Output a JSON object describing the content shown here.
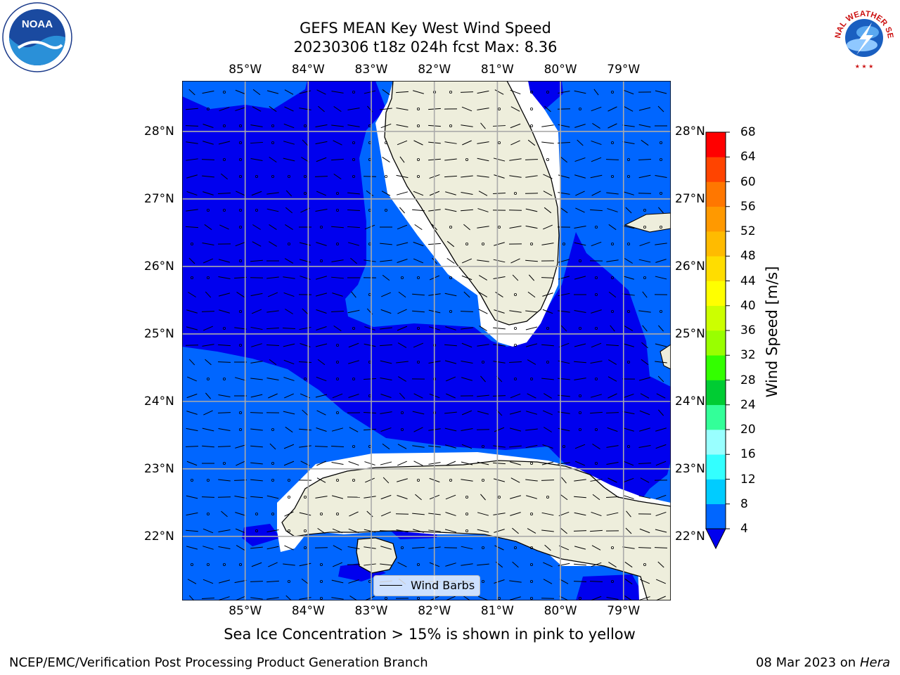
{
  "title": {
    "line1": "GEFS MEAN Key West Wind Speed",
    "line2": "20230306 t18z 024h fcst   Max: 8.36"
  },
  "map": {
    "lon_ticks": [
      "85°W",
      "84°W",
      "83°W",
      "82°W",
      "81°W",
      "80°W",
      "79°W"
    ],
    "lat_ticks": [
      "28°N",
      "27°N",
      "26°N",
      "25°N",
      "24°N",
      "23°N",
      "22°N"
    ],
    "lon_range": [
      -86.0,
      -78.25
    ],
    "lat_range": [
      21.05,
      28.75
    ],
    "grid": true,
    "colors": {
      "speed_4_8": "#0066ff",
      "speed_below_4": "#0000ee",
      "land": "#eeeedc",
      "coast": "#000000",
      "grid": "#aaaaaa"
    }
  },
  "legend": {
    "label": "Wind Barbs",
    "placement": "bottom-center"
  },
  "colorbar": {
    "title": "Wind Speed [m/s]",
    "ticks": [
      "4",
      "8",
      "12",
      "16",
      "20",
      "24",
      "28",
      "32",
      "36",
      "40",
      "44",
      "48",
      "52",
      "56",
      "60",
      "64",
      "68"
    ],
    "colors": [
      "#0066ff",
      "#00ccff",
      "#33ffff",
      "#99ffff",
      "#33ff99",
      "#00cc33",
      "#33ff00",
      "#99ff00",
      "#ccff00",
      "#ffff00",
      "#ffdd00",
      "#ffbb00",
      "#ff9900",
      "#ff7700",
      "#ff4400",
      "#ff0000"
    ],
    "underflow_color": "#0000ee"
  },
  "note": "Sea Ice Concentration > 15% is shown in pink to yellow",
  "footer": {
    "left": "NCEP/EMC/Verification Post Processing Product Generation Branch",
    "date": "08 Mar 2023 on",
    "machine": "Hera"
  },
  "logos": {
    "noaa": {
      "text": "NOAA",
      "icon": "noaa-logo-icon"
    },
    "nws": {
      "text": "NATIONAL WEATHER SERVICE",
      "icon": "nws-logo-icon"
    }
  }
}
